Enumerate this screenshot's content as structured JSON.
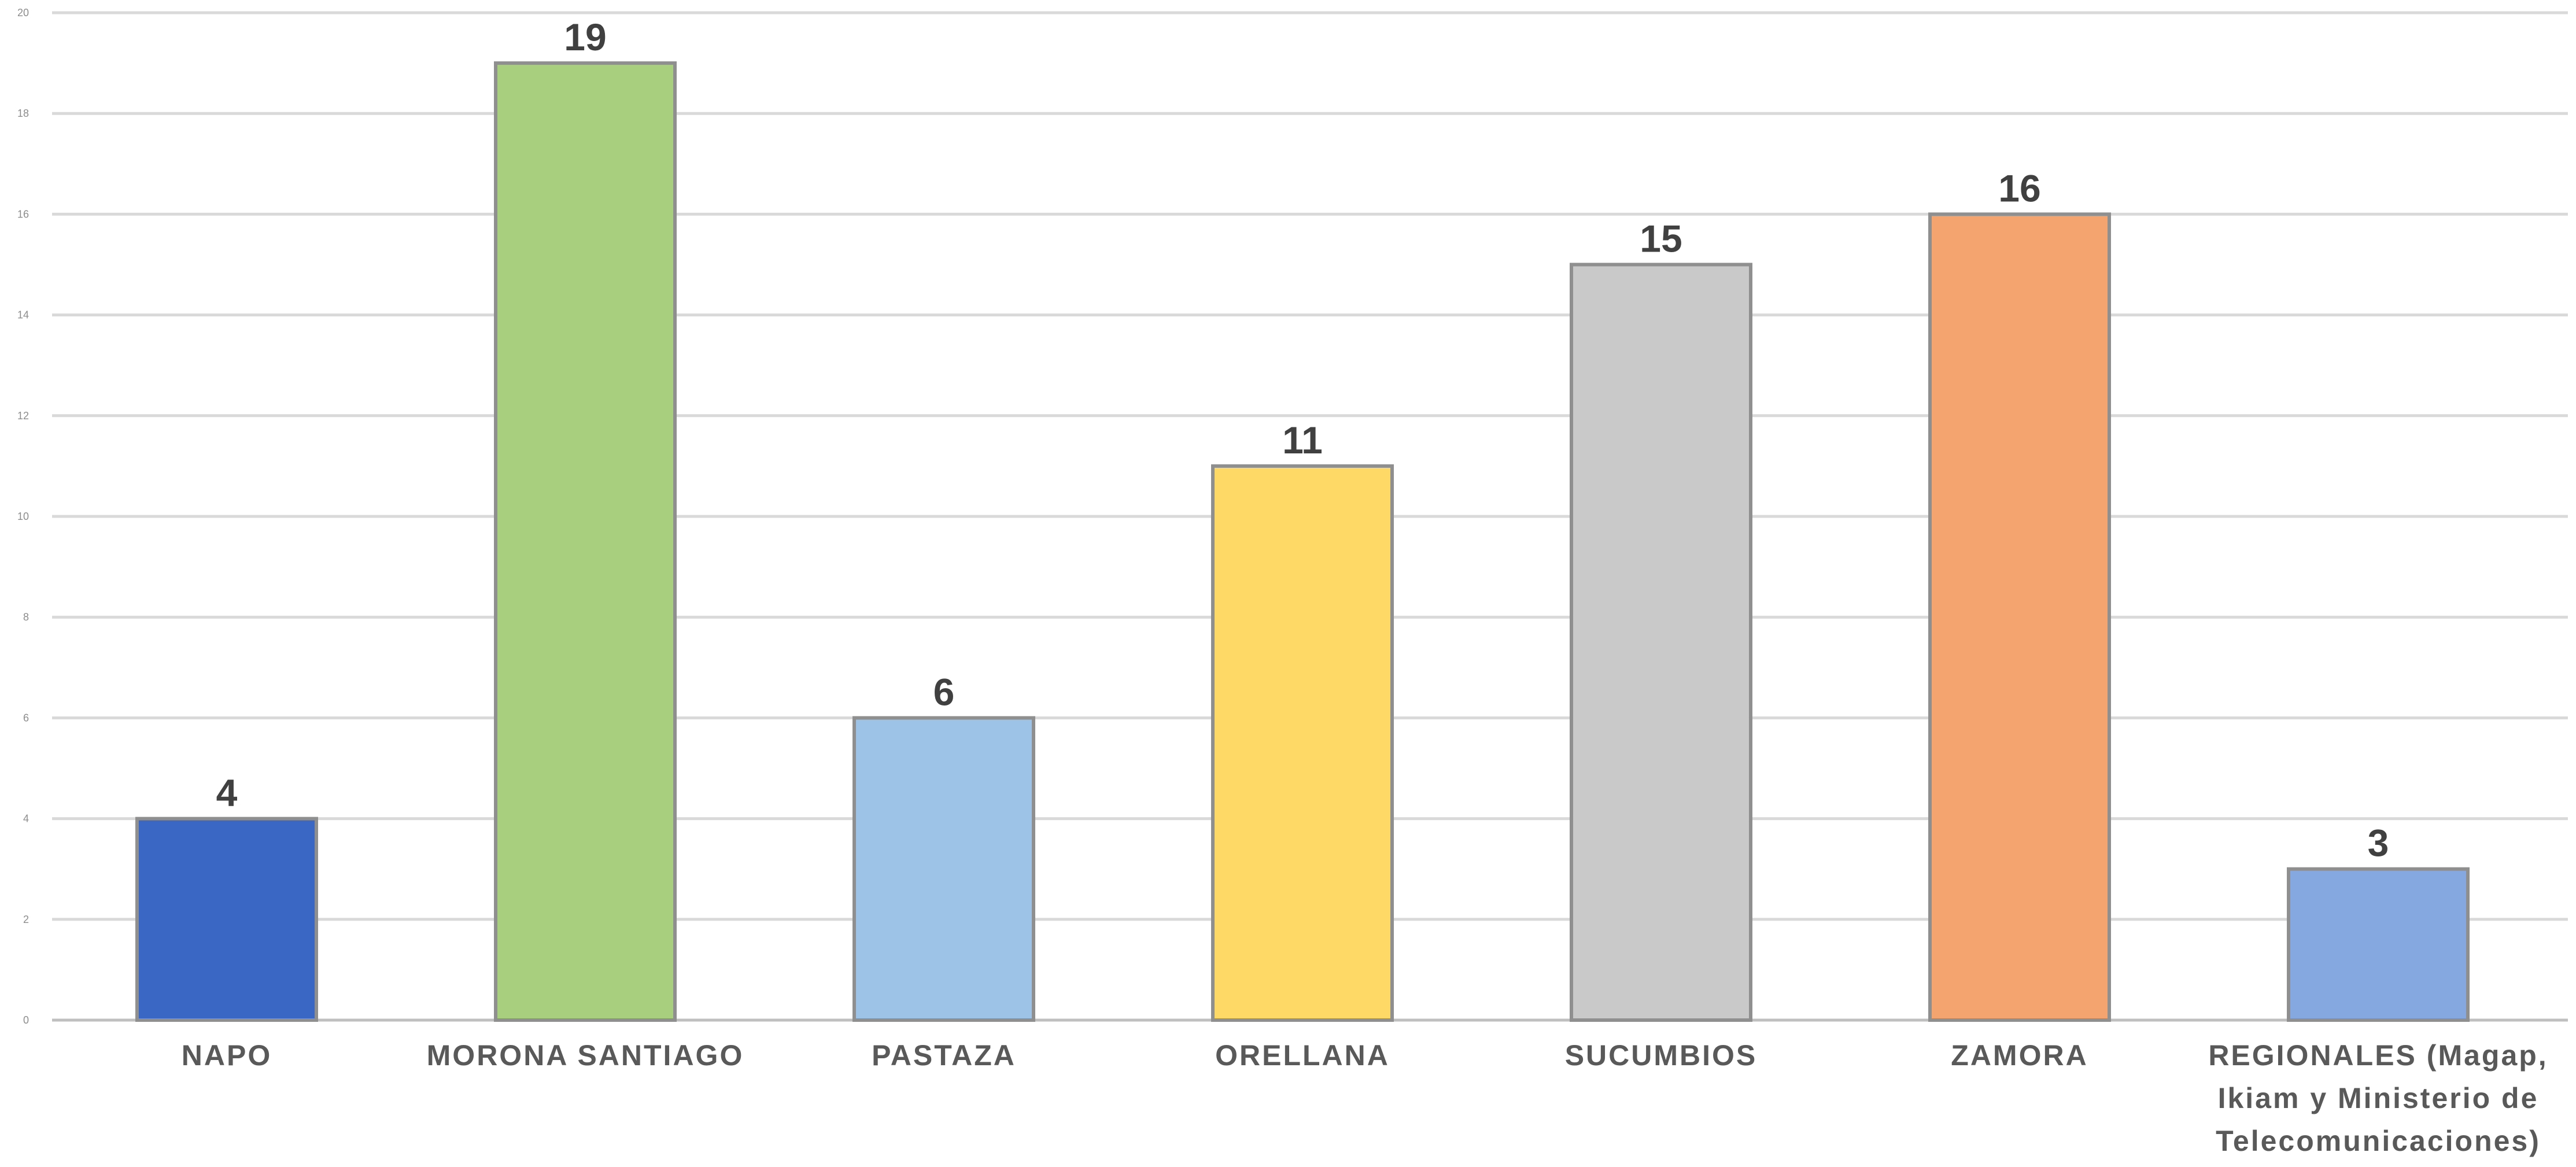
{
  "chart_data": {
    "type": "bar",
    "title": "",
    "xlabel": "",
    "ylabel": "",
    "ylim": [
      0,
      20
    ],
    "yticks": [
      0,
      2,
      4,
      6,
      8,
      10,
      12,
      14,
      16,
      18,
      20
    ],
    "grid": true,
    "legend": "none",
    "data_labels": true,
    "categories": [
      [
        "NAPO"
      ],
      [
        "MORONA SANTIAGO"
      ],
      [
        "PASTAZA"
      ],
      [
        "ORELLANA"
      ],
      [
        "SUCUMBIOS"
      ],
      [
        "ZAMORA"
      ],
      [
        "REGIONALES (Magap,",
        "Ikiam y Ministerio de",
        "Telecomunicaciones)"
      ]
    ],
    "values": [
      4,
      19,
      6,
      11,
      15,
      16,
      3
    ],
    "colors": [
      "#3a66c4",
      "#a8cf7e",
      "#9dc3e6",
      "#ffd966",
      "#c9c9c9",
      "#f4a46e",
      "#86a8e0"
    ]
  }
}
